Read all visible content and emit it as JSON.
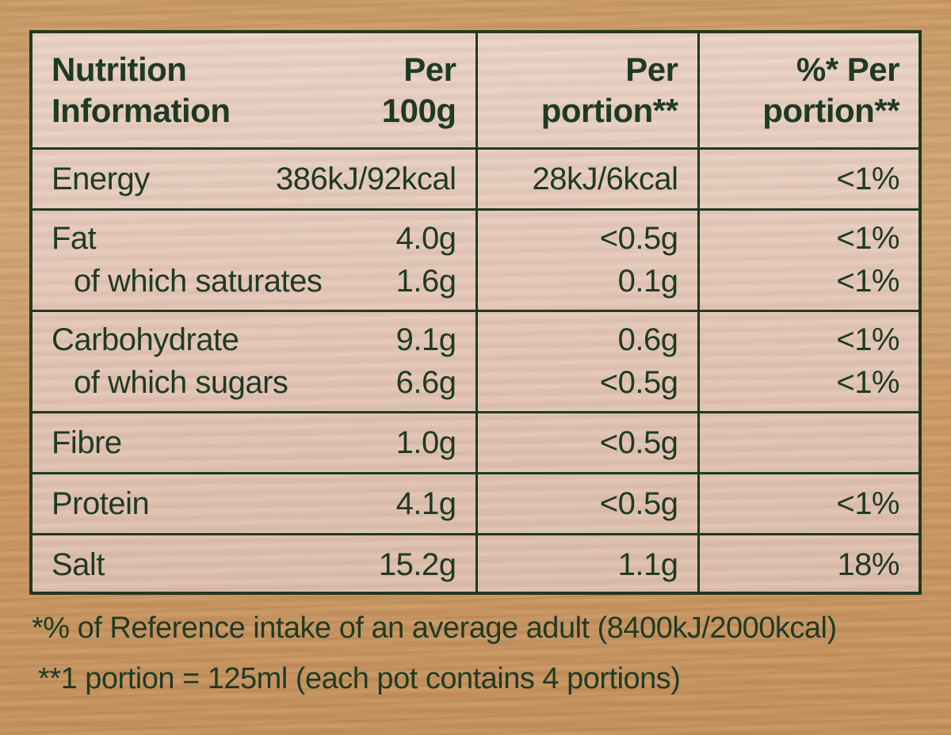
{
  "header": {
    "col1": [
      "Nutrition",
      "Information"
    ],
    "col1_per": [
      "Per",
      "100g"
    ],
    "col2": [
      "Per",
      "portion**"
    ],
    "col3": [
      "%* Per",
      "portion**"
    ]
  },
  "rows": [
    {
      "items": [
        {
          "label": "Energy",
          "per100g": "386kJ/92kcal",
          "perPortion": "28kJ/6kcal",
          "pct": "<1%"
        }
      ]
    },
    {
      "items": [
        {
          "label": "Fat",
          "per100g": "4.0g",
          "perPortion": "<0.5g",
          "pct": "<1%"
        },
        {
          "label": "of which saturates",
          "per100g": "1.6g",
          "perPortion": "0.1g",
          "pct": "<1%"
        }
      ]
    },
    {
      "items": [
        {
          "label": "Carbohydrate",
          "per100g": "9.1g",
          "perPortion": "0.6g",
          "pct": "<1%"
        },
        {
          "label": "of which sugars",
          "per100g": "6.6g",
          "perPortion": "<0.5g",
          "pct": "<1%"
        }
      ]
    },
    {
      "items": [
        {
          "label": "Fibre",
          "per100g": "1.0g",
          "perPortion": "<0.5g",
          "pct": ""
        }
      ]
    },
    {
      "items": [
        {
          "label": "Protein",
          "per100g": "4.1g",
          "perPortion": "<0.5g",
          "pct": "<1%"
        }
      ]
    },
    {
      "items": [
        {
          "label": "Salt",
          "per100g": "15.2g",
          "perPortion": "1.1g",
          "pct": "18%"
        }
      ]
    }
  ],
  "footnotes": {
    "note1": "*% of Reference intake of an average adult (8400kJ/2000kcal)",
    "note2": "**1 portion = 125ml (each pot contains 4 portions)"
  }
}
